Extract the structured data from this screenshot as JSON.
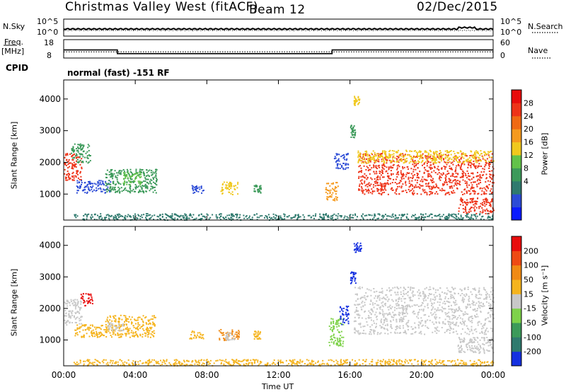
{
  "header": {
    "title": "Christmas Valley West (fitACF)",
    "beam": "Beam 12",
    "date": "02/Dec/2015"
  },
  "strip": {
    "nsky_label": "N.Sky",
    "nsky_ticks": [
      "10^5",
      "10^0"
    ],
    "nsearch_label": "N.Search",
    "nsearch_ticks": [
      "10^5",
      "10^0"
    ],
    "freq_label": "Freq.",
    "freq_unit": "[MHz]",
    "freq_ticks": [
      18,
      8
    ],
    "nave_label": "Nave",
    "nave_ticks": [
      60,
      0
    ],
    "cpid_label": "CPID",
    "cpid_text": "normal (fast) -151 RF",
    "freq_trace": {
      "x_hours": [
        0,
        3.0,
        3.0,
        15.0,
        15.0,
        24
      ],
      "mhz": [
        12.4,
        12.4,
        10.4,
        10.4,
        12.4,
        12.4
      ]
    },
    "nave_level": 20
  },
  "chart_data": [
    {
      "type": "heatmap",
      "panel": "power",
      "ylabel": "Slant Range [km]",
      "ylim": [
        180,
        4600
      ],
      "yticks": [
        1000,
        2000,
        3000,
        4000
      ],
      "xlim": [
        0,
        24
      ],
      "xtick_labels": [
        "00:00",
        "04:00",
        "08:00",
        "12:00",
        "16:00",
        "20:00",
        "00:00"
      ],
      "colorbar": {
        "label": "Power [dB]",
        "ticks": [
          28,
          24,
          20,
          16,
          12,
          8,
          4
        ],
        "colors": [
          "#0a1aff",
          "#2c4bd6",
          "#2f7a6e",
          "#3c9a5a",
          "#62c24a",
          "#f0c81e",
          "#f59a1e",
          "#f06a14",
          "#ee3318",
          "#e80c0c"
        ]
      },
      "regions": [
        {
          "t0": 0.0,
          "t1": 1.0,
          "r0": 1450,
          "r1": 2300,
          "color": "#ee3318"
        },
        {
          "t0": 0.4,
          "t1": 1.5,
          "r0": 2000,
          "r1": 2600,
          "color": "#3c9a5a"
        },
        {
          "t0": 0.7,
          "t1": 2.6,
          "r0": 1050,
          "r1": 1450,
          "color": "#2c4bd6"
        },
        {
          "t0": 2.3,
          "t1": 5.2,
          "r0": 1050,
          "r1": 1800,
          "color": "#3c9a5a"
        },
        {
          "t0": 3.3,
          "t1": 4.3,
          "r0": 1300,
          "r1": 1700,
          "color": "#62c24a"
        },
        {
          "t0": 7.1,
          "t1": 7.8,
          "r0": 1050,
          "r1": 1300,
          "color": "#2c4bd6"
        },
        {
          "t0": 8.7,
          "t1": 9.7,
          "r0": 1000,
          "r1": 1400,
          "color": "#f0c81e"
        },
        {
          "t0": 10.6,
          "t1": 11.0,
          "r0": 1050,
          "r1": 1300,
          "color": "#3c9a5a"
        },
        {
          "t0": 14.6,
          "t1": 15.3,
          "r0": 800,
          "r1": 1400,
          "color": "#f59a1e"
        },
        {
          "t0": 15.1,
          "t1": 15.9,
          "r0": 1800,
          "r1": 2300,
          "color": "#2c4bd6"
        },
        {
          "t0": 16.0,
          "t1": 16.3,
          "r0": 2800,
          "r1": 3200,
          "color": "#3c9a5a"
        },
        {
          "t0": 16.2,
          "t1": 16.5,
          "r0": 3800,
          "r1": 4100,
          "color": "#f0c81e"
        },
        {
          "t0": 16.4,
          "t1": 24.0,
          "r0": 1000,
          "r1": 2300,
          "color": "#ee3318"
        },
        {
          "t0": 16.4,
          "t1": 24.0,
          "r0": 2000,
          "r1": 2400,
          "color": "#f0c81e"
        },
        {
          "t0": 22.0,
          "t1": 24.0,
          "r0": 400,
          "r1": 900,
          "color": "#ee3318"
        },
        {
          "t0": 0.5,
          "t1": 24.0,
          "r0": 200,
          "r1": 400,
          "color": "#2f7a6e"
        }
      ]
    },
    {
      "type": "heatmap",
      "panel": "velocity",
      "ylabel": "Slant Range [km]",
      "ylim": [
        180,
        4600
      ],
      "yticks": [
        1000,
        2000,
        3000,
        4000
      ],
      "xlim": [
        0,
        24
      ],
      "xlabel": "Time UT",
      "xtick_labels": [
        "00:00",
        "04:00",
        "08:00",
        "12:00",
        "16:00",
        "20:00",
        "00:00"
      ],
      "colorbar": {
        "label": "Velocity [m s⁻¹]",
        "ticks": [
          200,
          100,
          50,
          15,
          -15,
          -50,
          -100,
          -200
        ],
        "colors": [
          "#1530e0",
          "#2f7a6e",
          "#3c9a5a",
          "#7ed24a",
          "#c8c8c8",
          "#f5b41e",
          "#f08a14",
          "#ee4a14",
          "#e80c0c"
        ]
      },
      "regions": [
        {
          "t0": 0.0,
          "t1": 1.0,
          "r0": 1500,
          "r1": 2300,
          "color": "#c8c8c8"
        },
        {
          "t0": 0.9,
          "t1": 1.6,
          "r0": 2100,
          "r1": 2500,
          "color": "#e80c0c"
        },
        {
          "t0": 0.6,
          "t1": 2.5,
          "r0": 1100,
          "r1": 1500,
          "color": "#f5b41e"
        },
        {
          "t0": 2.3,
          "t1": 5.1,
          "r0": 1100,
          "r1": 1800,
          "color": "#f5b41e"
        },
        {
          "t0": 2.4,
          "t1": 3.3,
          "r0": 1300,
          "r1": 1600,
          "color": "#c8c8c8"
        },
        {
          "t0": 7.0,
          "t1": 7.8,
          "r0": 1050,
          "r1": 1300,
          "color": "#f5b41e"
        },
        {
          "t0": 8.6,
          "t1": 9.8,
          "r0": 1000,
          "r1": 1350,
          "color": "#f08a14"
        },
        {
          "t0": 9.0,
          "t1": 9.5,
          "r0": 1000,
          "r1": 1250,
          "color": "#c8c8c8"
        },
        {
          "t0": 10.6,
          "t1": 11.0,
          "r0": 1050,
          "r1": 1300,
          "color": "#f5b41e"
        },
        {
          "t0": 14.8,
          "t1": 15.6,
          "r0": 800,
          "r1": 1700,
          "color": "#7ed24a"
        },
        {
          "t0": 15.4,
          "t1": 15.9,
          "r0": 1500,
          "r1": 2100,
          "color": "#1530e0"
        },
        {
          "t0": 16.0,
          "t1": 16.3,
          "r0": 2800,
          "r1": 3200,
          "color": "#1530e0"
        },
        {
          "t0": 16.2,
          "t1": 16.6,
          "r0": 3800,
          "r1": 4100,
          "color": "#1530e0"
        },
        {
          "t0": 16.2,
          "t1": 24.0,
          "r0": 1200,
          "r1": 2700,
          "color": "#c8c8c8"
        },
        {
          "t0": 22.0,
          "t1": 24.0,
          "r0": 600,
          "r1": 1100,
          "color": "#c8c8c8"
        },
        {
          "t0": 0.5,
          "t1": 24.0,
          "r0": 200,
          "r1": 400,
          "color": "#f5b41e"
        }
      ]
    }
  ]
}
